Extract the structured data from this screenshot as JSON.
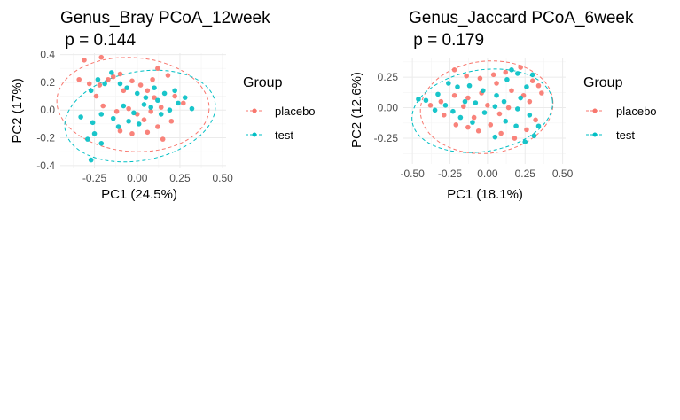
{
  "chart_data": [
    {
      "type": "scatter",
      "title": "Genus_Bray PCoA_12week",
      "subtitle": " p = 0.144",
      "xlabel": "PC1 (24.5%)",
      "ylabel": "PC2 (17%)",
      "xlim": [
        -0.45,
        0.52
      ],
      "ylim": [
        -0.42,
        0.41
      ],
      "xticks": [
        -0.25,
        0.0,
        0.25,
        0.5
      ],
      "xtick_labels": [
        "-0.25",
        "0.00",
        "0.25",
        "0.50"
      ],
      "yticks": [
        -0.4,
        -0.2,
        0.0,
        0.2,
        0.4
      ],
      "ytick_labels": [
        "-0.4",
        "-0.2",
        "0.0",
        "0.2",
        "0.4"
      ],
      "grid": true,
      "legend": {
        "title": "Group",
        "position": "right",
        "entries": [
          "placebo",
          "test"
        ]
      },
      "series": [
        {
          "name": "placebo",
          "color": "#F8766D",
          "points": [
            [
              -0.31,
              0.36
            ],
            [
              -0.34,
              0.22
            ],
            [
              -0.28,
              0.19
            ],
            [
              -0.21,
              0.38
            ],
            [
              -0.17,
              0.22
            ],
            [
              -0.14,
              0.24
            ],
            [
              -0.1,
              0.26
            ],
            [
              -0.08,
              0.14
            ],
            [
              -0.03,
              0.21
            ],
            [
              0.02,
              0.18
            ],
            [
              0.06,
              0.14
            ],
            [
              0.09,
              0.22
            ],
            [
              0.12,
              0.3
            ],
            [
              0.18,
              0.25
            ],
            [
              0.22,
              0.1
            ],
            [
              0.27,
              0.05
            ],
            [
              -0.24,
              0.1
            ],
            [
              -0.2,
              0.03
            ],
            [
              -0.12,
              -0.01
            ],
            [
              -0.05,
              0.01
            ],
            [
              0.0,
              -0.03
            ],
            [
              0.04,
              -0.07
            ],
            [
              0.08,
              -0.01
            ],
            [
              0.14,
              0.02
            ],
            [
              0.2,
              -0.08
            ],
            [
              -0.1,
              -0.15
            ],
            [
              -0.03,
              -0.17
            ],
            [
              0.06,
              -0.16
            ],
            [
              0.12,
              -0.12
            ],
            [
              0.15,
              -0.21
            ],
            [
              -0.22,
              0.18
            ],
            [
              0.1,
              0.09
            ]
          ]
        },
        {
          "name": "test",
          "color": "#00BFC4",
          "points": [
            [
              -0.27,
              0.14
            ],
            [
              -0.23,
              0.22
            ],
            [
              -0.19,
              0.19
            ],
            [
              -0.15,
              0.27
            ],
            [
              -0.1,
              0.19
            ],
            [
              -0.06,
              0.16
            ],
            [
              0.0,
              0.12
            ],
            [
              0.05,
              0.09
            ],
            [
              0.1,
              0.16
            ],
            [
              0.16,
              0.12
            ],
            [
              0.24,
              0.05
            ],
            [
              0.32,
              0.01
            ],
            [
              -0.33,
              -0.05
            ],
            [
              -0.26,
              -0.09
            ],
            [
              -0.21,
              -0.03
            ],
            [
              -0.14,
              -0.06
            ],
            [
              -0.08,
              0.03
            ],
            [
              -0.02,
              -0.02
            ],
            [
              0.04,
              0.04
            ],
            [
              0.12,
              0.07
            ],
            [
              0.19,
              0.0
            ],
            [
              -0.29,
              -0.21
            ],
            [
              -0.25,
              -0.17
            ],
            [
              -0.21,
              -0.24
            ],
            [
              -0.27,
              -0.36
            ],
            [
              -0.11,
              -0.12
            ],
            [
              -0.05,
              -0.08
            ],
            [
              0.01,
              -0.1
            ],
            [
              0.08,
              0.02
            ],
            [
              0.22,
              0.14
            ],
            [
              0.28,
              0.09
            ],
            [
              0.14,
              -0.03
            ]
          ]
        }
      ]
    },
    {
      "type": "scatter",
      "title": "Genus_Jaccard PCoA_6week",
      "subtitle": " p = 0.179",
      "xlabel": "PC1 (18.1%)",
      "ylabel": "PC2 (12.6%)",
      "xlim": [
        -0.56,
        0.52
      ],
      "ylim": [
        -0.46,
        0.41
      ],
      "xticks": [
        -0.5,
        -0.25,
        0.0,
        0.25,
        0.5
      ],
      "xtick_labels": [
        "-0.50",
        "-0.25",
        "0.00",
        "0.25",
        "0.50"
      ],
      "yticks": [
        -0.25,
        0.0,
        0.25
      ],
      "ytick_labels": [
        "-0.25",
        "0.00",
        "0.25"
      ],
      "grid": true,
      "legend": {
        "title": "Group",
        "position": "right",
        "entries": [
          "placebo",
          "test"
        ]
      },
      "series": [
        {
          "name": "placebo",
          "color": "#F8766D",
          "points": [
            [
              -0.22,
              0.31
            ],
            [
              -0.14,
              0.26
            ],
            [
              -0.05,
              0.24
            ],
            [
              0.04,
              0.27
            ],
            [
              0.12,
              0.29
            ],
            [
              0.22,
              0.33
            ],
            [
              0.3,
              0.22
            ],
            [
              0.34,
              0.18
            ],
            [
              0.24,
              0.1
            ],
            [
              0.16,
              0.14
            ],
            [
              0.06,
              0.2
            ],
            [
              -0.04,
              0.12
            ],
            [
              -0.13,
              0.08
            ],
            [
              -0.22,
              0.1
            ],
            [
              -0.31,
              0.05
            ],
            [
              -0.38,
              0.02
            ],
            [
              -0.29,
              -0.06
            ],
            [
              -0.21,
              -0.14
            ],
            [
              -0.13,
              -0.16
            ],
            [
              -0.06,
              -0.19
            ],
            [
              0.02,
              -0.14
            ],
            [
              0.09,
              -0.21
            ],
            [
              0.18,
              -0.25
            ],
            [
              0.26,
              -0.18
            ],
            [
              0.32,
              -0.1
            ],
            [
              -0.16,
              0.01
            ],
            [
              0.0,
              0.02
            ],
            [
              0.14,
              0.0
            ],
            [
              0.28,
              0.05
            ],
            [
              -0.09,
              -0.08
            ],
            [
              0.08,
              -0.05
            ],
            [
              0.36,
              0.12
            ]
          ]
        },
        {
          "name": "test",
          "color": "#00BFC4",
          "points": [
            [
              -0.46,
              0.07
            ],
            [
              -0.41,
              0.06
            ],
            [
              -0.33,
              0.11
            ],
            [
              -0.26,
              0.2
            ],
            [
              -0.2,
              0.17
            ],
            [
              -0.12,
              0.18
            ],
            [
              -0.03,
              0.14
            ],
            [
              0.06,
              0.1
            ],
            [
              0.13,
              0.23
            ],
            [
              0.2,
              0.28
            ],
            [
              0.26,
              0.17
            ],
            [
              0.16,
              0.31
            ],
            [
              0.3,
              0.27
            ],
            [
              -0.35,
              -0.02
            ],
            [
              -0.28,
              0.02
            ],
            [
              -0.23,
              -0.03
            ],
            [
              -0.15,
              0.05
            ],
            [
              -0.08,
              0.04
            ],
            [
              -0.02,
              -0.04
            ],
            [
              0.05,
              0.01
            ],
            [
              0.11,
              0.05
            ],
            [
              0.2,
              -0.01
            ],
            [
              0.28,
              -0.06
            ],
            [
              0.25,
              -0.28
            ],
            [
              0.31,
              -0.23
            ],
            [
              0.19,
              -0.15
            ],
            [
              0.12,
              -0.11
            ],
            [
              0.05,
              -0.24
            ],
            [
              -0.1,
              -0.12
            ],
            [
              -0.18,
              -0.08
            ],
            [
              0.34,
              -0.15
            ],
            [
              0.22,
              0.08
            ]
          ]
        }
      ]
    }
  ]
}
